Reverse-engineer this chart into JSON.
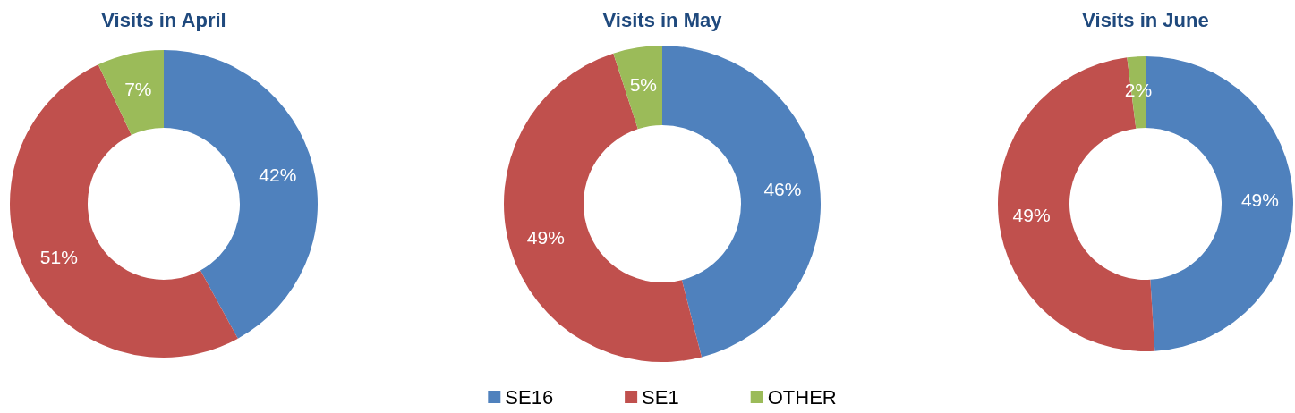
{
  "chart_data": [
    {
      "type": "donut",
      "title": "Visits in April",
      "categories": [
        null,
        null,
        null
      ],
      "values": [
        42,
        51,
        7
      ],
      "value_labels": [
        "42%",
        "51%",
        "7%"
      ],
      "colors": [
        "#4f81bd",
        "#c0504d",
        "#9bbb59"
      ]
    },
    {
      "type": "donut",
      "title": "Visits in May",
      "categories": [
        "SE16",
        "SE1",
        "OTHER"
      ],
      "values": [
        46,
        49,
        5
      ],
      "value_labels": [
        "46%",
        "49%",
        "5%"
      ],
      "colors": [
        "#4f81bd",
        "#c0504d",
        "#9bbb59"
      ],
      "legend": "bottom"
    },
    {
      "type": "donut",
      "title": "Visits in June",
      "categories": [
        null,
        null,
        null
      ],
      "values": [
        49,
        49,
        2
      ],
      "value_labels": [
        "49%",
        "49%",
        "2%"
      ],
      "colors": [
        "#4f81bd",
        "#c0504d",
        "#9bbb59"
      ]
    }
  ]
}
